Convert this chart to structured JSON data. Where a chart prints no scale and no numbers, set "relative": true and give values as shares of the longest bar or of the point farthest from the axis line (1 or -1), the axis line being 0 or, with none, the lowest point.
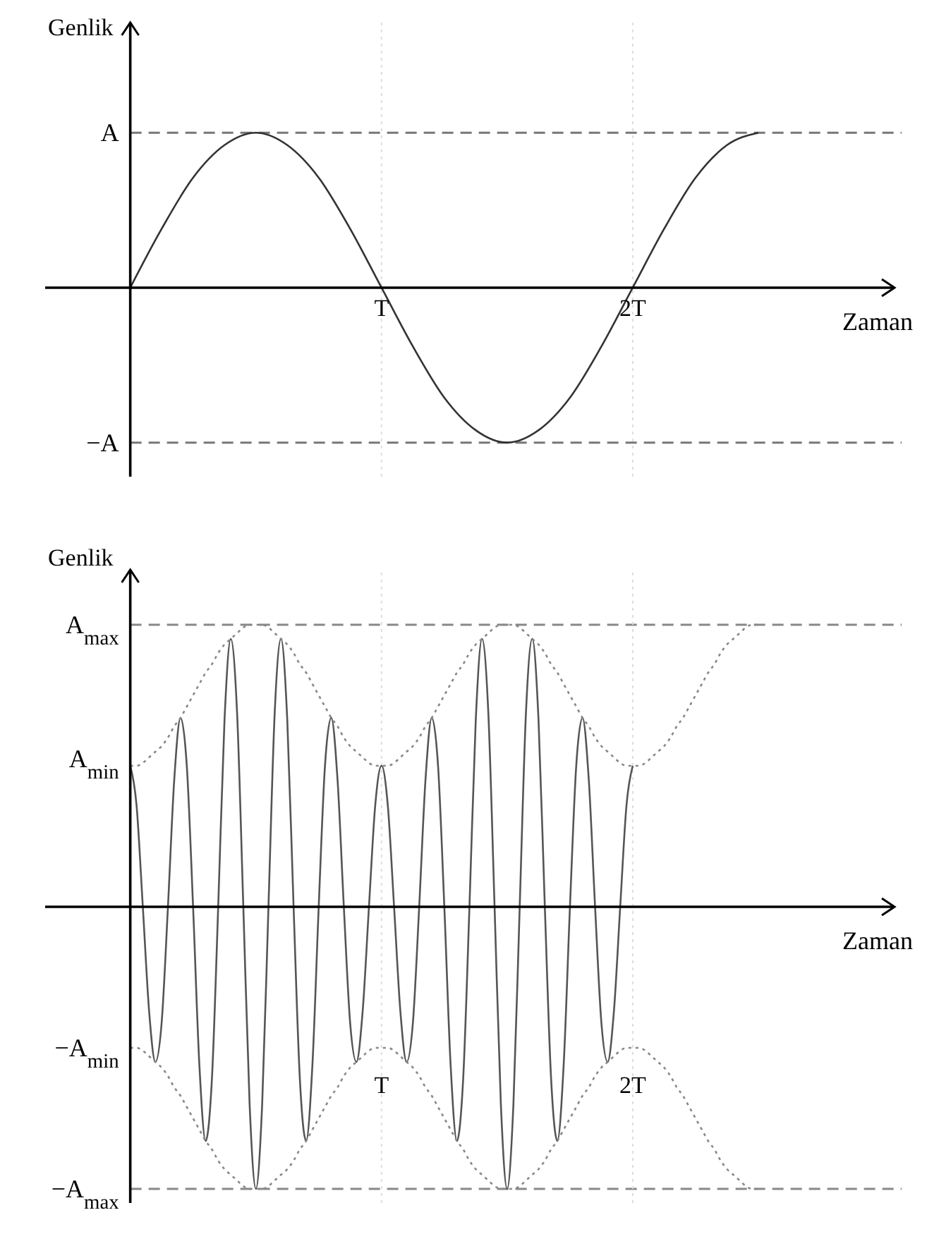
{
  "chart_data": [
    {
      "type": "line",
      "relative": true,
      "xlabel": "Zaman",
      "ylabel": "Genlik",
      "categories": [
        null,
        null,
        null,
        null,
        null,
        null,
        null,
        null,
        "T",
        null,
        null,
        null,
        null,
        null,
        null,
        null,
        "2T",
        null,
        null,
        null,
        null
      ],
      "series": [
        {
          "color": "#333333",
          "values": [
            0,
            0.38,
            0.71,
            0.92,
            1,
            0.92,
            0.71,
            0.38,
            0,
            -0.38,
            -0.71,
            -0.92,
            -1,
            -0.92,
            -0.71,
            -0.38,
            0,
            0.38,
            0.71,
            0.92,
            1
          ]
        }
      ],
      "ref_lines": [
        {
          "axis": "y",
          "value": 1,
          "label": "A",
          "color": "#777777",
          "line_style": "dashed"
        },
        {
          "axis": "y",
          "value": -1,
          "label": "−A",
          "color": "#777777",
          "line_style": "dashed"
        },
        {
          "axis": "x",
          "value": "T",
          "color": "#dddddd",
          "line_style": "dotted"
        },
        {
          "axis": "x",
          "value": "2T",
          "color": "#dddddd",
          "line_style": "dotted"
        }
      ]
    },
    {
      "type": "line",
      "relative": true,
      "xlabel": "Zaman",
      "ylabel": "Genlik",
      "categories": [
        null,
        null,
        null,
        null,
        null,
        null,
        null,
        null,
        null,
        null,
        null,
        null,
        null,
        null,
        null,
        null,
        null,
        null,
        null,
        null,
        null,
        null,
        null,
        null,
        null,
        null,
        null,
        null,
        null,
        null,
        null,
        null,
        null,
        null,
        null,
        null,
        null,
        null,
        null,
        null,
        "T",
        null,
        null,
        null,
        null,
        null,
        null,
        null,
        null,
        null,
        null,
        null,
        null,
        null,
        null,
        null,
        null,
        null,
        null,
        null,
        null,
        null,
        null,
        null,
        null,
        null,
        null,
        null,
        null,
        null,
        null,
        null,
        null,
        null,
        null,
        null,
        null,
        null,
        null,
        null,
        "2T",
        null,
        null,
        null,
        null,
        null,
        null,
        null,
        null,
        null,
        null,
        null,
        null,
        null,
        null,
        null,
        null,
        null,
        null,
        null,
        null
      ],
      "series": [
        {
          "color": "#555555",
          "values": [
            0.5,
            0.36,
            0,
            -0.37,
            -0.55,
            -0.41,
            0,
            0.45,
            0.67,
            0.5,
            0,
            -0.56,
            -0.83,
            -0.61,
            0,
            0.66,
            0.95,
            0.69,
            0,
            -0.7,
            -1,
            -0.7,
            0,
            0.69,
            0.95,
            0.66,
            0,
            -0.61,
            -0.83,
            -0.56,
            0,
            0.5,
            0.67,
            0.45,
            0,
            -0.41,
            -0.55,
            -0.37,
            0,
            0.36,
            0.5,
            0.36,
            0,
            -0.37,
            -0.55,
            -0.41,
            0,
            0.45,
            0.67,
            0.5,
            0,
            -0.56,
            -0.83,
            -0.61,
            0,
            0.66,
            0.95,
            0.69,
            0,
            -0.7,
            -1,
            -0.7,
            0,
            0.69,
            0.95,
            0.66,
            0,
            -0.61,
            -0.83,
            -0.56,
            0,
            0.5,
            0.67,
            0.45,
            0,
            -0.41,
            -0.55,
            -0.37,
            0,
            0.36,
            0.5,
            null,
            null,
            null,
            null,
            null,
            null,
            null,
            null,
            null,
            null,
            null,
            null,
            null,
            null,
            null,
            null,
            null,
            null,
            null,
            null
          ]
        },
        {
          "color": "#888888",
          "line_style": "dotted",
          "values": [
            0.5,
            0.5,
            0.51,
            0.53,
            0.55,
            0.57,
            0.6,
            0.64,
            0.67,
            0.71,
            0.75,
            0.79,
            0.83,
            0.86,
            0.9,
            0.93,
            0.95,
            0.97,
            0.99,
            1,
            1,
            1,
            0.99,
            0.97,
            0.95,
            0.93,
            0.9,
            0.86,
            0.83,
            0.79,
            0.75,
            0.71,
            0.67,
            0.64,
            0.6,
            0.57,
            0.55,
            0.53,
            0.51,
            0.5,
            0.5,
            0.5,
            0.51,
            0.53,
            0.55,
            0.57,
            0.6,
            0.64,
            0.67,
            0.71,
            0.75,
            0.79,
            0.83,
            0.86,
            0.9,
            0.93,
            0.95,
            0.97,
            0.99,
            1,
            1,
            1,
            0.99,
            0.97,
            0.95,
            0.93,
            0.9,
            0.86,
            0.83,
            0.79,
            0.75,
            0.71,
            0.67,
            0.64,
            0.6,
            0.57,
            0.55,
            0.53,
            0.51,
            0.5,
            0.5,
            0.5,
            0.51,
            0.53,
            0.55,
            0.57,
            0.6,
            0.64,
            0.67,
            0.71,
            0.75,
            0.79,
            0.83,
            0.86,
            0.9,
            0.93,
            0.95,
            0.97,
            0.99,
            1,
            1
          ]
        },
        {
          "color": "#888888",
          "line_style": "dotted",
          "values": [
            -0.5,
            -0.5,
            -0.51,
            -0.53,
            -0.55,
            -0.57,
            -0.6,
            -0.64,
            -0.67,
            -0.71,
            -0.75,
            -0.79,
            -0.83,
            -0.86,
            -0.9,
            -0.93,
            -0.95,
            -0.97,
            -0.99,
            -1,
            -1,
            -1,
            -0.99,
            -0.97,
            -0.95,
            -0.93,
            -0.9,
            -0.86,
            -0.83,
            -0.79,
            -0.75,
            -0.71,
            -0.67,
            -0.64,
            -0.6,
            -0.57,
            -0.55,
            -0.53,
            -0.51,
            -0.5,
            -0.5,
            -0.5,
            -0.51,
            -0.53,
            -0.55,
            -0.57,
            -0.6,
            -0.64,
            -0.67,
            -0.71,
            -0.75,
            -0.79,
            -0.83,
            -0.86,
            -0.9,
            -0.93,
            -0.95,
            -0.97,
            -0.99,
            -1,
            -1,
            -1,
            -0.99,
            -0.97,
            -0.95,
            -0.93,
            -0.9,
            -0.86,
            -0.83,
            -0.79,
            -0.75,
            -0.71,
            -0.67,
            -0.64,
            -0.6,
            -0.57,
            -0.55,
            -0.53,
            -0.51,
            -0.5,
            -0.5,
            -0.5,
            -0.51,
            -0.53,
            -0.55,
            -0.57,
            -0.6,
            -0.64,
            -0.67,
            -0.71,
            -0.75,
            -0.79,
            -0.83,
            -0.86,
            -0.9,
            -0.93,
            -0.95,
            -0.97,
            -0.99,
            -1,
            -1
          ]
        }
      ],
      "ref_lines": [
        {
          "axis": "y",
          "value": 1,
          "label": "A$_{max}$",
          "color": "#888888",
          "line_style": "dashed"
        },
        {
          "axis": "y",
          "value": -1,
          "label": "−A$_{max}$",
          "color": "#888888",
          "line_style": "dashed"
        },
        {
          "axis": "x",
          "value": "T",
          "color": "#dddddd",
          "line_style": "dotted"
        },
        {
          "axis": "x",
          "value": "2T",
          "color": "#dddddd",
          "line_style": "dotted"
        }
      ],
      "annotations": [
        "A$_{min}$",
        "−A$_{min}$"
      ]
    }
  ]
}
